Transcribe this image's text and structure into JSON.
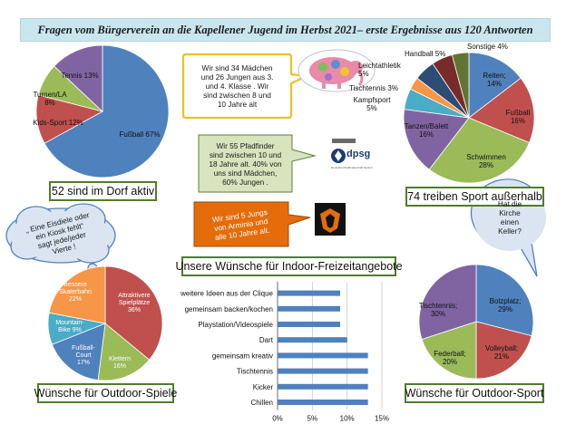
{
  "title": "Fragen vom Bürgerverein an die Kapellener Jugend im Herbst 2021– erste Ergebnisse aus 120 Antworten",
  "boxes": {
    "dorf": "52 sind im Dorf aktiv",
    "sport_ausserhalb": "74 treiben Sport außerhalb",
    "indoor": "Unsere Wünsche für Indoor-Freizeitangebote",
    "outdoor_spiele": "Wünsche für Outdoor-Spiele",
    "outdoor_sport": "Wünsche für Outdoor-Sport"
  },
  "callouts": {
    "maedchen": [
      "Wir sind 34 Mädchen",
      "und 26 Jungen aus 3.",
      "und 4. Klasse . Wir",
      "sind zwischen 8 und",
      "10 Jahre alt"
    ],
    "pfadfinder": [
      "Wir 55 Pfadfinder",
      "sind  zwischen 10 und",
      "18 Jahre alt. 40% von",
      "uns sind Mädchen,",
      "60% Jungen ."
    ],
    "arminia": [
      "Wir sind 5 Jungs",
      "von Arminia und",
      "alle 10 Jahre alt."
    ],
    "eisdiele": [
      "„ Eine Eisdiele oder",
      "ein Kiosk fehlt“",
      "sagt jede/jeder",
      "Vierte !"
    ],
    "kirche": [
      "Hat die",
      "Kirche",
      "einen",
      "Keller?"
    ]
  },
  "logos": {
    "dpsg": "dpsg",
    "dpsg_small": "Deutsche Pfadfinderschaft Sankt Georg"
  },
  "colors": {
    "blue": "#4f81bd",
    "red": "#c0504d",
    "green": "#9bbb59",
    "purple": "#8064a2",
    "teal": "#4bacc6",
    "orange": "#f79646",
    "bar": "#4f81bd",
    "callout_yellow_border": "#f0c020",
    "callout_green_bg": "#d7e4bd",
    "callout_orange_bg": "#e46c0a",
    "callout_blue_bg": "#dbe5f1",
    "callout_blue_border": "#4f81bd"
  },
  "chart_data": [
    {
      "type": "pie",
      "labels": [
        "Fußball",
        "Kids-Sport",
        "Turnen/LA",
        "Tennis"
      ],
      "values": [
        67,
        12,
        8,
        13
      ],
      "label_texts": [
        "Fußball 67%",
        "Kids-Sport 12%",
        "Turnen/LA\n8%",
        "Tennis 13%"
      ]
    },
    {
      "type": "pie",
      "labels": [
        "Reiten",
        "Fußball",
        "Schwimmen",
        "Tanzen/Balett",
        "Kampfsport",
        "Tischtennis",
        "Leichtathletik",
        "Handball",
        "Sonstige"
      ],
      "values": [
        14,
        16,
        28,
        16,
        5,
        3,
        5,
        5,
        4
      ],
      "label_texts": [
        "Reiten;\n14%",
        "Fußball\n16%",
        "Schwimmen\n28%",
        "Tanzen/Balett\n16%",
        "Kampfsport\n5%",
        "Tischtennis 3%",
        "Leichtathletik\n5%",
        "Handball 5%",
        "Sonstige 4%"
      ]
    },
    {
      "type": "pie",
      "labels": [
        "Attraktivere Spielplätze",
        "Klettern",
        "Fußball-Court",
        "Mountain-Bike",
        "Bessere Skaterbahn"
      ],
      "values": [
        36,
        16,
        17,
        9,
        22
      ],
      "label_texts": [
        "Attraktivere\nSpielplätze\n36%",
        "Klettern\n16%",
        "Fußball-\nCourt\n17%",
        "Mountain-\nBike 9%",
        "Bessere\nSkaterbahn\n22%"
      ]
    },
    {
      "type": "bar",
      "orientation": "horizontal",
      "categories": [
        "weitere Ideen aus der Clique",
        "gemeinsam backen/kochen",
        "Playstation/Videospiele",
        "Dart",
        "gemeinsam kreativ",
        "Tischtennis",
        "Kicker",
        "Chillen"
      ],
      "values": [
        9,
        9,
        9,
        10,
        13,
        13,
        13,
        13
      ],
      "xlim": [
        0,
        15
      ],
      "xticks": [
        "0%",
        "5%",
        "10%",
        "15%"
      ],
      "grid": true
    },
    {
      "type": "pie",
      "labels": [
        "Bolzplatz",
        "Volleyball",
        "Federball",
        "Tischtennis"
      ],
      "values": [
        29,
        21,
        20,
        30
      ],
      "label_texts": [
        "Bolzplatz;\n29%",
        "Volleyball;\n21%",
        "Federball;\n20%",
        "Tischtennis;\n30%"
      ]
    }
  ]
}
